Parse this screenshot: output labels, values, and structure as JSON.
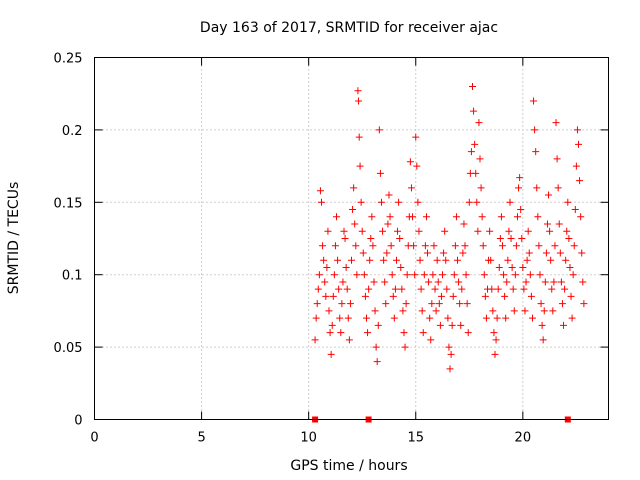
{
  "chart_data": {
    "type": "scatter",
    "title": "Day 163 of 2017, SRMTID for receiver ajac",
    "xlabel": "GPS time / hours",
    "ylabel": "SRMTID / TECUs",
    "xlim": [
      0,
      24
    ],
    "ylim": [
      0,
      0.25
    ],
    "xticks": [
      0,
      5,
      10,
      15,
      20
    ],
    "xtick_labels": [
      "0",
      "5",
      "10",
      "15",
      "20"
    ],
    "yticks": [
      0,
      0.05,
      0.1,
      0.15,
      0.2,
      0.25
    ],
    "ytick_labels": [
      "0",
      "0.05",
      "0.1",
      "0.15",
      "0.2",
      "0.25"
    ],
    "grid": true,
    "marker": "plus",
    "color": "#ff0000",
    "zero_markers_x": [
      10.3,
      12.8,
      22.1
    ],
    "series": [
      {
        "values_note_free": true,
        "points": [
          [
            10.3,
            0.055
          ],
          [
            10.35,
            0.07
          ],
          [
            10.4,
            0.08
          ],
          [
            10.45,
            0.09
          ],
          [
            10.5,
            0.1
          ],
          [
            10.55,
            0.158
          ],
          [
            10.6,
            0.15
          ],
          [
            10.65,
            0.12
          ],
          [
            10.7,
            0.11
          ],
          [
            10.75,
            0.095
          ],
          [
            10.8,
            0.085
          ],
          [
            10.85,
            0.105
          ],
          [
            10.9,
            0.13
          ],
          [
            10.95,
            0.075
          ],
          [
            11.0,
            0.06
          ],
          [
            11.05,
            0.045
          ],
          [
            11.1,
            0.065
          ],
          [
            11.15,
            0.085
          ],
          [
            11.2,
            0.1
          ],
          [
            11.25,
            0.12
          ],
          [
            11.3,
            0.14
          ],
          [
            11.35,
            0.11
          ],
          [
            11.4,
            0.09
          ],
          [
            11.45,
            0.07
          ],
          [
            11.5,
            0.06
          ],
          [
            11.55,
            0.08
          ],
          [
            11.6,
            0.095
          ],
          [
            11.65,
            0.13
          ],
          [
            11.7,
            0.125
          ],
          [
            11.75,
            0.105
          ],
          [
            11.8,
            0.09
          ],
          [
            11.85,
            0.07
          ],
          [
            11.9,
            0.055
          ],
          [
            11.95,
            0.08
          ],
          [
            12.0,
            0.11
          ],
          [
            12.05,
            0.145
          ],
          [
            12.1,
            0.16
          ],
          [
            12.15,
            0.135
          ],
          [
            12.2,
            0.12
          ],
          [
            12.25,
            0.1
          ],
          [
            12.3,
            0.227
          ],
          [
            12.33,
            0.22
          ],
          [
            12.36,
            0.195
          ],
          [
            12.4,
            0.175
          ],
          [
            12.45,
            0.15
          ],
          [
            12.5,
            0.13
          ],
          [
            12.55,
            0.115
          ],
          [
            12.6,
            0.1
          ],
          [
            12.65,
            0.085
          ],
          [
            12.7,
            0.07
          ],
          [
            12.75,
            0.06
          ],
          [
            12.8,
            0.09
          ],
          [
            12.85,
            0.11
          ],
          [
            12.9,
            0.125
          ],
          [
            12.95,
            0.14
          ],
          [
            13.0,
            0.12
          ],
          [
            13.05,
            0.095
          ],
          [
            13.1,
            0.075
          ],
          [
            13.15,
            0.05
          ],
          [
            13.2,
            0.04
          ],
          [
            13.25,
            0.065
          ],
          [
            13.3,
            0.2
          ],
          [
            13.35,
            0.17
          ],
          [
            13.4,
            0.15
          ],
          [
            13.45,
            0.13
          ],
          [
            13.5,
            0.11
          ],
          [
            13.55,
            0.095
          ],
          [
            13.6,
            0.08
          ],
          [
            13.65,
            0.115
          ],
          [
            13.7,
            0.135
          ],
          [
            13.75,
            0.155
          ],
          [
            13.8,
            0.14
          ],
          [
            13.85,
            0.12
          ],
          [
            13.9,
            0.1
          ],
          [
            13.95,
            0.085
          ],
          [
            14.0,
            0.07
          ],
          [
            14.05,
            0.09
          ],
          [
            14.1,
            0.11
          ],
          [
            14.15,
            0.13
          ],
          [
            14.2,
            0.15
          ],
          [
            14.25,
            0.125
          ],
          [
            14.3,
            0.105
          ],
          [
            14.35,
            0.09
          ],
          [
            14.4,
            0.075
          ],
          [
            14.45,
            0.06
          ],
          [
            14.5,
            0.05
          ],
          [
            14.55,
            0.08
          ],
          [
            14.6,
            0.1
          ],
          [
            14.65,
            0.12
          ],
          [
            14.7,
            0.14
          ],
          [
            14.75,
            0.178
          ],
          [
            14.8,
            0.16
          ],
          [
            14.85,
            0.14
          ],
          [
            14.9,
            0.12
          ],
          [
            14.95,
            0.1
          ],
          [
            15.0,
            0.195
          ],
          [
            15.05,
            0.175
          ],
          [
            15.1,
            0.15
          ],
          [
            15.15,
            0.13
          ],
          [
            15.2,
            0.11
          ],
          [
            15.25,
            0.09
          ],
          [
            15.3,
            0.075
          ],
          [
            15.35,
            0.06
          ],
          [
            15.4,
            0.1
          ],
          [
            15.45,
            0.12
          ],
          [
            15.5,
            0.14
          ],
          [
            15.55,
            0.115
          ],
          [
            15.6,
            0.095
          ],
          [
            15.65,
            0.07
          ],
          [
            15.7,
            0.055
          ],
          [
            15.75,
            0.08
          ],
          [
            15.8,
            0.1
          ],
          [
            15.85,
            0.12
          ],
          [
            15.9,
            0.09
          ],
          [
            15.95,
            0.075
          ],
          [
            16.0,
            0.11
          ],
          [
            16.05,
            0.095
          ],
          [
            16.1,
            0.08
          ],
          [
            16.15,
            0.065
          ],
          [
            16.2,
            0.085
          ],
          [
            16.25,
            0.1
          ],
          [
            16.3,
            0.115
          ],
          [
            16.35,
            0.13
          ],
          [
            16.4,
            0.11
          ],
          [
            16.45,
            0.09
          ],
          [
            16.5,
            0.07
          ],
          [
            16.55,
            0.05
          ],
          [
            16.6,
            0.035
          ],
          [
            16.65,
            0.045
          ],
          [
            16.7,
            0.065
          ],
          [
            16.75,
            0.085
          ],
          [
            16.8,
            0.1
          ],
          [
            16.85,
            0.12
          ],
          [
            16.9,
            0.14
          ],
          [
            16.95,
            0.11
          ],
          [
            17.0,
            0.095
          ],
          [
            17.05,
            0.08
          ],
          [
            17.1,
            0.065
          ],
          [
            17.15,
            0.09
          ],
          [
            17.2,
            0.115
          ],
          [
            17.25,
            0.135
          ],
          [
            17.3,
            0.12
          ],
          [
            17.35,
            0.1
          ],
          [
            17.4,
            0.08
          ],
          [
            17.45,
            0.06
          ],
          [
            17.5,
            0.15
          ],
          [
            17.55,
            0.17
          ],
          [
            17.6,
            0.185
          ],
          [
            17.65,
            0.23
          ],
          [
            17.7,
            0.213
          ],
          [
            17.75,
            0.19
          ],
          [
            17.8,
            0.17
          ],
          [
            17.85,
            0.15
          ],
          [
            17.9,
            0.13
          ],
          [
            17.95,
            0.205
          ],
          [
            18.0,
            0.18
          ],
          [
            18.05,
            0.16
          ],
          [
            18.1,
            0.14
          ],
          [
            18.15,
            0.12
          ],
          [
            18.2,
            0.1
          ],
          [
            18.25,
            0.085
          ],
          [
            18.3,
            0.07
          ],
          [
            18.35,
            0.09
          ],
          [
            18.4,
            0.11
          ],
          [
            18.45,
            0.13
          ],
          [
            18.5,
            0.11
          ],
          [
            18.55,
            0.09
          ],
          [
            18.6,
            0.075
          ],
          [
            18.65,
            0.06
          ],
          [
            18.7,
            0.045
          ],
          [
            18.75,
            0.055
          ],
          [
            18.8,
            0.07
          ],
          [
            18.85,
            0.09
          ],
          [
            18.9,
            0.105
          ],
          [
            18.95,
            0.125
          ],
          [
            19.0,
            0.14
          ],
          [
            19.05,
            0.12
          ],
          [
            19.1,
            0.1
          ],
          [
            19.15,
            0.085
          ],
          [
            19.2,
            0.07
          ],
          [
            19.25,
            0.095
          ],
          [
            19.3,
            0.11
          ],
          [
            19.35,
            0.13
          ],
          [
            19.4,
            0.15
          ],
          [
            19.45,
            0.125
          ],
          [
            19.5,
            0.105
          ],
          [
            19.55,
            0.09
          ],
          [
            19.6,
            0.075
          ],
          [
            19.65,
            0.1
          ],
          [
            19.7,
            0.12
          ],
          [
            19.75,
            0.14
          ],
          [
            19.8,
            0.16
          ],
          [
            19.85,
            0.167
          ],
          [
            19.9,
            0.145
          ],
          [
            19.95,
            0.125
          ],
          [
            20.0,
            0.105
          ],
          [
            20.05,
            0.09
          ],
          [
            20.1,
            0.075
          ],
          [
            20.15,
            0.095
          ],
          [
            20.2,
            0.11
          ],
          [
            20.25,
            0.13
          ],
          [
            20.3,
            0.115
          ],
          [
            20.35,
            0.1
          ],
          [
            20.4,
            0.085
          ],
          [
            20.45,
            0.07
          ],
          [
            20.5,
            0.22
          ],
          [
            20.55,
            0.2
          ],
          [
            20.6,
            0.185
          ],
          [
            20.65,
            0.16
          ],
          [
            20.7,
            0.14
          ],
          [
            20.75,
            0.12
          ],
          [
            20.8,
            0.1
          ],
          [
            20.85,
            0.08
          ],
          [
            20.9,
            0.065
          ],
          [
            20.95,
            0.055
          ],
          [
            21.0,
            0.075
          ],
          [
            21.05,
            0.095
          ],
          [
            21.1,
            0.115
          ],
          [
            21.15,
            0.135
          ],
          [
            21.2,
            0.155
          ],
          [
            21.25,
            0.13
          ],
          [
            21.3,
            0.11
          ],
          [
            21.35,
            0.09
          ],
          [
            21.4,
            0.075
          ],
          [
            21.45,
            0.095
          ],
          [
            21.5,
            0.12
          ],
          [
            21.55,
            0.205
          ],
          [
            21.6,
            0.18
          ],
          [
            21.65,
            0.16
          ],
          [
            21.7,
            0.135
          ],
          [
            21.75,
            0.115
          ],
          [
            21.8,
            0.095
          ],
          [
            21.85,
            0.08
          ],
          [
            21.9,
            0.065
          ],
          [
            21.95,
            0.09
          ],
          [
            22.0,
            0.11
          ],
          [
            22.05,
            0.13
          ],
          [
            22.1,
            0.15
          ],
          [
            22.15,
            0.125
          ],
          [
            22.2,
            0.105
          ],
          [
            22.25,
            0.085
          ],
          [
            22.3,
            0.07
          ],
          [
            22.35,
            0.1
          ],
          [
            22.4,
            0.12
          ],
          [
            22.45,
            0.145
          ],
          [
            22.5,
            0.175
          ],
          [
            22.55,
            0.2
          ],
          [
            22.6,
            0.19
          ],
          [
            22.65,
            0.165
          ],
          [
            22.7,
            0.14
          ],
          [
            22.75,
            0.115
          ],
          [
            22.8,
            0.095
          ],
          [
            22.85,
            0.08
          ]
        ]
      }
    ]
  }
}
